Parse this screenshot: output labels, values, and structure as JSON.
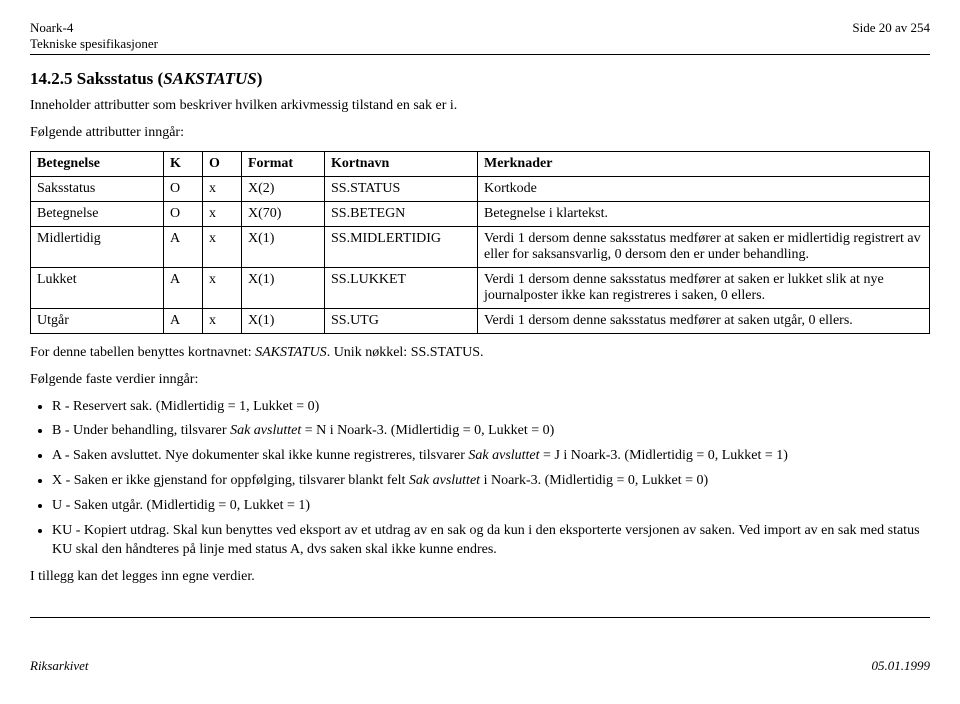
{
  "header": {
    "left1": "Noark-4",
    "left2": "Tekniske spesifikasjoner",
    "right": "Side 20 av 254"
  },
  "section": {
    "title_plain": "14.2.5 Saksstatus (",
    "title_italic": "SAKSTATUS",
    "title_close": ")",
    "intro": "Inneholder attributter som beskriver hvilken arkivmessig tilstand en sak er i.",
    "attr_intro": "Følgende attributter inngår:"
  },
  "table": {
    "headers": {
      "b": "Betegnelse",
      "k": "K",
      "o": "O",
      "f": "Format",
      "n": "Kortnavn",
      "m": "Merknader"
    },
    "rows": [
      {
        "b": "Saksstatus",
        "k": "O",
        "o": "x",
        "f": "X(2)",
        "n": "SS.STATUS",
        "m": "Kortkode"
      },
      {
        "b": "Betegnelse",
        "k": "O",
        "o": "x",
        "f": "X(70)",
        "n": "SS.BETEGN",
        "m": "Betegnelse i klartekst."
      },
      {
        "b": "Midlertidig",
        "k": "A",
        "o": "x",
        "f": "X(1)",
        "n": "SS.MIDLERTIDIG",
        "m": "Verdi 1 dersom denne saksstatus medfører at saken er midlertidig registrert av eller for saksansvarlig, 0 dersom den er under behandling."
      },
      {
        "b": "Lukket",
        "k": "A",
        "o": "x",
        "f": "X(1)",
        "n": "SS.LUKKET",
        "m": "Verdi 1 dersom denne saksstatus medfører at saken er lukket slik at nye journalposter ikke kan registreres i saken, 0 ellers."
      },
      {
        "b": "Utgår",
        "k": "A",
        "o": "x",
        "f": "X(1)",
        "n": "SS.UTG",
        "m": "Verdi 1 dersom denne saksstatus medfører at saken utgår, 0 ellers."
      }
    ]
  },
  "post_table": {
    "p1a": "For denne tabellen benyttes kortnavnet: ",
    "p1i": "SAKSTATUS",
    "p1b": ". Unik nøkkel: ",
    "p1c": "SS.STATUS.",
    "p2": "Følgende faste verdier inngår:"
  },
  "values": [
    {
      "text": "R - Reservert sak. (Midlertidig = 1, Lukket = 0)"
    },
    {
      "pre": "B - Under behandling, tilsvarer ",
      "italic": "Sak avsluttet",
      "post": " = N i Noark-3. (Midlertidig = 0, Lukket = 0)"
    },
    {
      "pre": "A - Saken avsluttet. Nye dokumenter skal ikke kunne registreres, tilsvarer ",
      "italic": "Sak avsluttet",
      "post": " = J i Noark-3. (Midlertidig = 0, Lukket = 1)"
    },
    {
      "pre": "X - Saken er ikke gjenstand for oppfølging, tilsvarer blankt felt ",
      "italic": "Sak avsluttet",
      "post": " i Noark-3. (Midlertidig = 0, Lukket = 0)"
    },
    {
      "text": "U - Saken utgår. (Midlertidig = 0, Lukket = 1)"
    },
    {
      "text": "KU - Kopiert utdrag. Skal kun benyttes ved eksport av et utdrag av en sak og da kun i den eksporterte versjonen av saken. Ved import av en sak med status KU skal den håndteres på linje med status A, dvs saken skal ikke kunne endres."
    }
  ],
  "closing": "I tillegg kan det legges inn egne verdier.",
  "footer": {
    "left": "Riksarkivet",
    "right": "05.01.1999"
  }
}
